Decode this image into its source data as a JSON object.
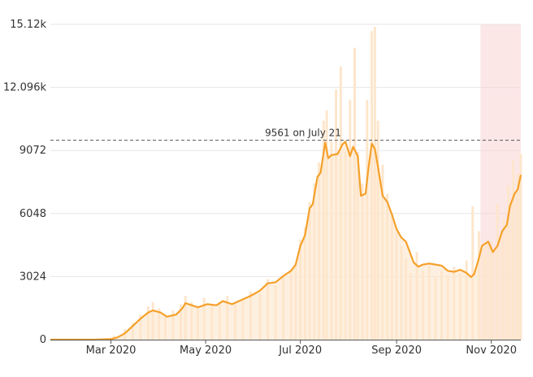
{
  "chart_data": {
    "type": "bar",
    "title": "",
    "xlabel": "",
    "ylabel": "",
    "x_range": [
      "2020-01-22",
      "2020-11-20"
    ],
    "ylim": [
      0,
      15120
    ],
    "y_ticks": [
      0,
      3024,
      6048,
      9072,
      12096,
      15120
    ],
    "y_tick_labels": [
      "0",
      "3024",
      "6048",
      "9072",
      "12.096k",
      "15.12k"
    ],
    "x_ticks": [
      "2020-03-01",
      "2020-05-01",
      "2020-07-01",
      "2020-09-01",
      "2020-11-01"
    ],
    "x_tick_labels": [
      "Mar 2020",
      "May 2020",
      "Jul 2020",
      "Sep 2020",
      "Nov 2020"
    ],
    "grid": true,
    "legend": "none",
    "colors": {
      "bars": "#fde6cc",
      "avg_line": "#f5a02a",
      "highlight_band": "#f9d3d3",
      "reference_line": "#555555"
    },
    "reference_line": {
      "value": 9561,
      "label": "9561 on July 21"
    },
    "highlight_range": [
      "2020-10-25",
      "2020-11-20"
    ],
    "series": [
      {
        "type": "bar",
        "points": [
          [
            "2020-01-25",
            0
          ],
          [
            "2020-02-15",
            20
          ],
          [
            "2020-02-25",
            60
          ],
          [
            "2020-03-03",
            180
          ],
          [
            "2020-03-10",
            500
          ],
          [
            "2020-03-15",
            800
          ],
          [
            "2020-03-20",
            1200
          ],
          [
            "2020-03-25",
            1600
          ],
          [
            "2020-03-28",
            1800
          ],
          [
            "2020-04-01",
            1500
          ],
          [
            "2020-04-05",
            1200
          ],
          [
            "2020-04-10",
            1400
          ],
          [
            "2020-04-15",
            1700
          ],
          [
            "2020-04-18",
            2100
          ],
          [
            "2020-04-22",
            1800
          ],
          [
            "2020-04-26",
            1500
          ],
          [
            "2020-04-30",
            2000
          ],
          [
            "2020-05-05",
            1700
          ],
          [
            "2020-05-10",
            1800
          ],
          [
            "2020-05-15",
            2100
          ],
          [
            "2020-05-20",
            1700
          ],
          [
            "2020-05-25",
            1900
          ],
          [
            "2020-05-30",
            2300
          ],
          [
            "2020-06-05",
            2200
          ],
          [
            "2020-06-10",
            2900
          ],
          [
            "2020-06-15",
            2600
          ],
          [
            "2020-06-20",
            3000
          ],
          [
            "2020-06-25",
            3300
          ],
          [
            "2020-06-28",
            3600
          ],
          [
            "2020-07-01",
            4800
          ],
          [
            "2020-07-04",
            5400
          ],
          [
            "2020-07-07",
            6600
          ],
          [
            "2020-07-10",
            7500
          ],
          [
            "2020-07-13",
            8500
          ],
          [
            "2020-07-16",
            10500
          ],
          [
            "2020-07-18",
            11000
          ],
          [
            "2020-07-21",
            9500
          ],
          [
            "2020-07-24",
            12000
          ],
          [
            "2020-07-27",
            13100
          ],
          [
            "2020-07-30",
            9000
          ],
          [
            "2020-08-02",
            11500
          ],
          [
            "2020-08-05",
            14000
          ],
          [
            "2020-08-07",
            9000
          ],
          [
            "2020-08-10",
            7500
          ],
          [
            "2020-08-13",
            11500
          ],
          [
            "2020-08-16",
            14800
          ],
          [
            "2020-08-18",
            15000
          ],
          [
            "2020-08-20",
            10500
          ],
          [
            "2020-08-23",
            8400
          ],
          [
            "2020-08-26",
            7000
          ],
          [
            "2020-08-29",
            6000
          ],
          [
            "2020-09-01",
            5200
          ],
          [
            "2020-09-04",
            4500
          ],
          [
            "2020-09-07",
            3900
          ],
          [
            "2020-09-10",
            3200
          ],
          [
            "2020-09-14",
            4200
          ],
          [
            "2020-09-18",
            3300
          ],
          [
            "2020-09-22",
            3600
          ],
          [
            "2020-09-26",
            3000
          ],
          [
            "2020-09-30",
            3300
          ],
          [
            "2020-10-04",
            3100
          ],
          [
            "2020-10-08",
            3500
          ],
          [
            "2020-10-12",
            3200
          ],
          [
            "2020-10-16",
            3800
          ],
          [
            "2020-10-20",
            6400
          ],
          [
            "2020-10-24",
            5200
          ],
          [
            "2020-10-28",
            4000
          ],
          [
            "2020-11-01",
            4700
          ],
          [
            "2020-11-05",
            6500
          ],
          [
            "2020-11-09",
            5800
          ],
          [
            "2020-11-12",
            7400
          ],
          [
            "2020-11-15",
            8600
          ],
          [
            "2020-11-18",
            8000
          ],
          [
            "2020-11-20",
            8900
          ]
        ]
      },
      {
        "type": "line",
        "points": [
          [
            "2020-01-22",
            0
          ],
          [
            "2020-02-20",
            0
          ],
          [
            "2020-03-01",
            30
          ],
          [
            "2020-03-05",
            100
          ],
          [
            "2020-03-10",
            300
          ],
          [
            "2020-03-15",
            650
          ],
          [
            "2020-03-20",
            1000
          ],
          [
            "2020-03-25",
            1300
          ],
          [
            "2020-03-28",
            1400
          ],
          [
            "2020-04-02",
            1300
          ],
          [
            "2020-04-06",
            1100
          ],
          [
            "2020-04-12",
            1200
          ],
          [
            "2020-04-16",
            1500
          ],
          [
            "2020-04-18",
            1750
          ],
          [
            "2020-04-22",
            1650
          ],
          [
            "2020-04-26",
            1550
          ],
          [
            "2020-05-02",
            1700
          ],
          [
            "2020-05-08",
            1650
          ],
          [
            "2020-05-12",
            1850
          ],
          [
            "2020-05-18",
            1700
          ],
          [
            "2020-05-24",
            1900
          ],
          [
            "2020-05-30",
            2100
          ],
          [
            "2020-06-05",
            2350
          ],
          [
            "2020-06-10",
            2700
          ],
          [
            "2020-06-15",
            2750
          ],
          [
            "2020-06-20",
            3050
          ],
          [
            "2020-06-25",
            3300
          ],
          [
            "2020-06-28",
            3600
          ],
          [
            "2020-07-01",
            4500
          ],
          [
            "2020-07-04",
            5000
          ],
          [
            "2020-07-07",
            6300
          ],
          [
            "2020-07-09",
            6500
          ],
          [
            "2020-07-12",
            7800
          ],
          [
            "2020-07-14",
            8000
          ],
          [
            "2020-07-17",
            9450
          ],
          [
            "2020-07-19",
            8700
          ],
          [
            "2020-07-21",
            8850
          ],
          [
            "2020-07-25",
            8900
          ],
          [
            "2020-07-28",
            9350
          ],
          [
            "2020-07-30",
            9500
          ],
          [
            "2020-08-02",
            8800
          ],
          [
            "2020-08-04",
            9250
          ],
          [
            "2020-08-07",
            8800
          ],
          [
            "2020-08-09",
            6900
          ],
          [
            "2020-08-12",
            7000
          ],
          [
            "2020-08-14",
            8300
          ],
          [
            "2020-08-16",
            9400
          ],
          [
            "2020-08-18",
            9150
          ],
          [
            "2020-08-20",
            8300
          ],
          [
            "2020-08-23",
            6900
          ],
          [
            "2020-08-26",
            6600
          ],
          [
            "2020-08-29",
            6000
          ],
          [
            "2020-09-01",
            5300
          ],
          [
            "2020-09-04",
            4900
          ],
          [
            "2020-09-07",
            4700
          ],
          [
            "2020-09-10",
            4100
          ],
          [
            "2020-09-12",
            3700
          ],
          [
            "2020-09-15",
            3500
          ],
          [
            "2020-09-18",
            3600
          ],
          [
            "2020-09-22",
            3650
          ],
          [
            "2020-09-26",
            3600
          ],
          [
            "2020-09-30",
            3550
          ],
          [
            "2020-10-04",
            3300
          ],
          [
            "2020-10-08",
            3250
          ],
          [
            "2020-10-12",
            3350
          ],
          [
            "2020-10-16",
            3200
          ],
          [
            "2020-10-19",
            3000
          ],
          [
            "2020-10-21",
            3150
          ],
          [
            "2020-10-24",
            3900
          ],
          [
            "2020-10-26",
            4500
          ],
          [
            "2020-10-30",
            4700
          ],
          [
            "2020-11-02",
            4200
          ],
          [
            "2020-11-05",
            4500
          ],
          [
            "2020-11-08",
            5200
          ],
          [
            "2020-11-11",
            5500
          ],
          [
            "2020-11-13",
            6400
          ],
          [
            "2020-11-16",
            7000
          ],
          [
            "2020-11-18",
            7200
          ],
          [
            "2020-11-20",
            7900
          ]
        ]
      }
    ]
  }
}
